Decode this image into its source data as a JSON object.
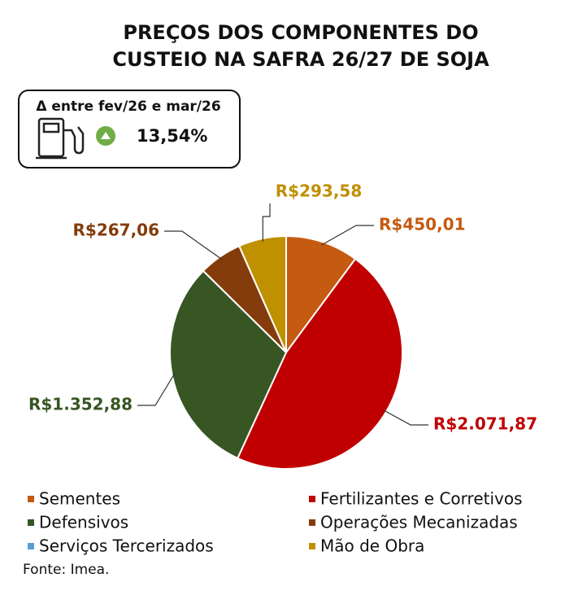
{
  "chart_data": {
    "type": "pie",
    "title": "PREÇOS DOS COMPONENTES DO CUSTEIO NA SAFRA 26/27 DE SOJA",
    "annotation": {
      "label": "Δ entre fev/26 e mar/26",
      "value": "13,54%"
    },
    "categories": [
      "Sementes",
      "Fertilizantes e Corretivos",
      "Defensivos",
      "Operações Mecanizadas",
      "Serviços Tercerizados",
      "Mão de Obra"
    ],
    "values": [
      450.01,
      2071.87,
      1352.88,
      267.06,
      0,
      293.58
    ],
    "value_labels": [
      "R$450,01",
      "R$2.071,87",
      "R$1.352,88",
      "R$267,06",
      null,
      "R$293,58"
    ],
    "colors": [
      "#c55a11",
      "#c00000",
      "#375623",
      "#843c0c",
      "#5b9bd5",
      "#bf9000"
    ],
    "source": "Fonte: Imea."
  }
}
